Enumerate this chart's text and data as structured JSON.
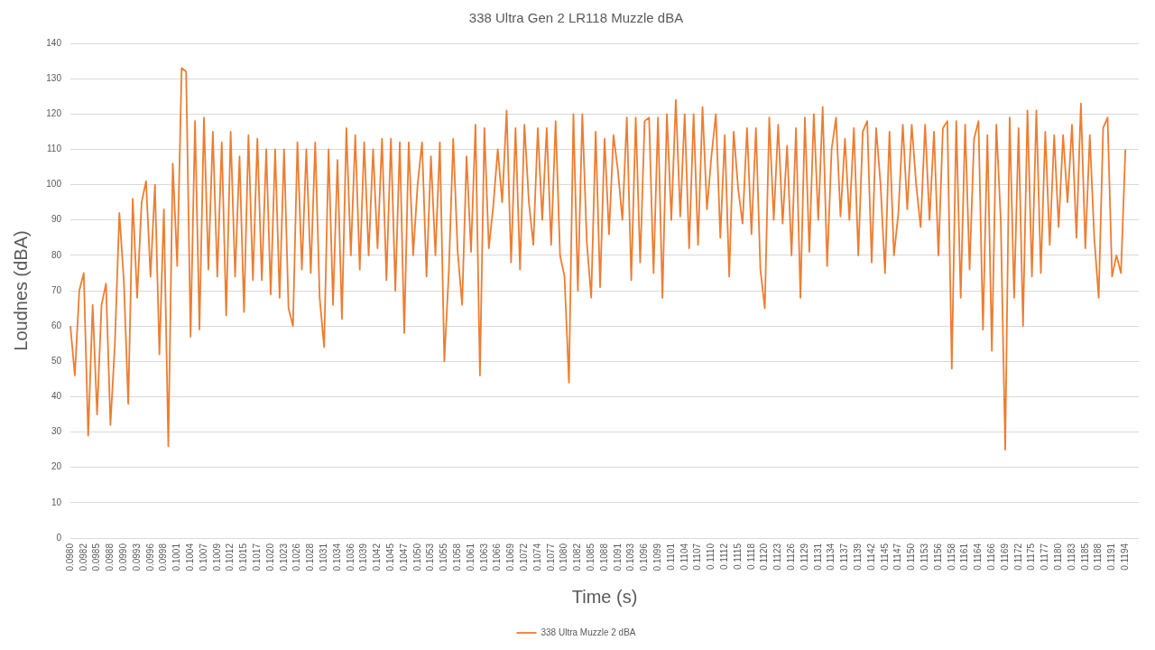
{
  "chart_data": {
    "type": "line",
    "title": "338 Ultra Gen 2 LR118 Muzzle dBA",
    "xlabel": "Time (s)",
    "ylabel": "Loudnes (dBA)",
    "categories": [
      "0.0980",
      null,
      null,
      "0.0982",
      null,
      null,
      "0.0985",
      null,
      null,
      "0.0988",
      null,
      null,
      "0.0990",
      null,
      null,
      "0.0993",
      null,
      null,
      "0.0996",
      null,
      null,
      "0.0998",
      null,
      null,
      "0.1001",
      null,
      null,
      "0.1004",
      null,
      null,
      "0.1007",
      null,
      null,
      "0.1009",
      null,
      null,
      "0.1012",
      null,
      null,
      "0.1015",
      null,
      null,
      "0.1017",
      null,
      null,
      "0.1020",
      null,
      null,
      "0.1023",
      null,
      null,
      "0.1026",
      null,
      null,
      "0.1028",
      null,
      null,
      "0.1031",
      null,
      null,
      "0.1034",
      null,
      null,
      "0.1036",
      null,
      null,
      "0.1039",
      null,
      null,
      "0.1042",
      null,
      null,
      "0.1045",
      null,
      null,
      "0.1047",
      null,
      null,
      "0.1050",
      null,
      null,
      "0.1053",
      null,
      null,
      "0.1055",
      null,
      null,
      "0.1058",
      null,
      null,
      "0.1061",
      null,
      null,
      "0.1063",
      null,
      null,
      "0.1066",
      null,
      null,
      "0.1069",
      null,
      null,
      "0.1072",
      null,
      null,
      "0.1074",
      null,
      null,
      "0.1077",
      null,
      null,
      "0.1080",
      null,
      null,
      "0.1082",
      null,
      null,
      "0.1085",
      null,
      null,
      "0.1088",
      null,
      null,
      "0.1091",
      null,
      null,
      "0.1093",
      null,
      null,
      "0.1096",
      null,
      null,
      "0.1099",
      null,
      null,
      "0.1101",
      null,
      null,
      "0.1104",
      null,
      null,
      "0.1107",
      null,
      null,
      "0.1110",
      null,
      null,
      "0.1112",
      null,
      null,
      "0.1115",
      null,
      null,
      "0.1118",
      null,
      null,
      "0.1120",
      null,
      null,
      "0.1123",
      null,
      null,
      "0.1126",
      null,
      null,
      "0.1129",
      null,
      null,
      "0.1131",
      null,
      null,
      "0.1134",
      null,
      null,
      "0.1137",
      null,
      null,
      "0.1139",
      null,
      null,
      "0.1142",
      null,
      null,
      "0.1145",
      null,
      null,
      "0.1147",
      null,
      null,
      "0.1150",
      null,
      null,
      "0.1153",
      null,
      null,
      "0.1156",
      null,
      null,
      "0.1158",
      null,
      null,
      "0.1161",
      null,
      null,
      "0.1164",
      null,
      null,
      "0.1166",
      null,
      null,
      "0.1169",
      null,
      null,
      "0.1172",
      null,
      null,
      "0.1175",
      null,
      null,
      "0.1177",
      null,
      null,
      "0.1180",
      null,
      null,
      "0.1183",
      null,
      null,
      "0.1185",
      null,
      null,
      "0.1188",
      null,
      null,
      "0.1191",
      null,
      null,
      "0.1194",
      null,
      null,
      null
    ],
    "series": [
      {
        "name": "338 Ultra Muzzle 2 dBA",
        "color": "#ed7d31",
        "values": [
          60,
          46,
          70,
          75,
          29,
          66,
          35,
          66,
          72,
          32,
          55,
          92,
          73,
          38,
          96,
          68,
          95,
          101,
          74,
          100,
          52,
          93,
          26,
          106,
          77,
          133,
          132,
          57,
          118,
          59,
          119,
          76,
          115,
          74,
          112,
          63,
          115,
          74,
          108,
          64,
          114,
          73,
          113,
          73,
          110,
          69,
          110,
          68,
          110,
          65,
          60,
          112,
          76,
          110,
          75,
          112,
          68,
          54,
          110,
          66,
          107,
          62,
          116,
          80,
          114,
          76,
          112,
          80,
          110,
          82,
          113,
          73,
          113,
          70,
          112,
          58,
          112,
          80,
          100,
          112,
          74,
          108,
          80,
          112,
          50,
          75,
          113,
          81,
          66,
          108,
          81,
          117,
          46,
          116,
          82,
          94,
          110,
          95,
          121,
          78,
          116,
          76,
          117,
          95,
          83,
          116,
          90,
          116,
          83,
          118,
          80,
          74,
          44,
          120,
          70,
          120,
          84,
          68,
          115,
          71,
          113,
          86,
          114,
          104,
          90,
          119,
          73,
          119,
          78,
          118,
          119,
          75,
          119,
          68,
          120,
          90,
          124,
          91,
          120,
          82,
          120,
          83,
          122,
          93,
          108,
          120,
          85,
          114,
          74,
          115,
          99,
          89,
          116,
          86,
          116,
          76,
          65,
          119,
          90,
          117,
          89,
          111,
          80,
          116,
          68,
          119,
          81,
          120,
          90,
          122,
          77,
          110,
          119,
          91,
          113,
          90,
          116,
          80,
          115,
          118,
          78,
          116,
          100,
          75,
          115,
          80,
          92,
          117,
          93,
          117,
          100,
          88,
          117,
          90,
          115,
          80,
          116,
          118,
          48,
          118,
          68,
          117,
          76,
          113,
          118,
          59,
          114,
          53,
          117,
          90,
          25,
          119,
          68,
          116,
          60,
          121,
          74,
          121,
          75,
          115,
          83,
          114,
          88,
          114,
          95,
          117,
          85,
          123,
          82,
          114,
          85,
          68,
          116,
          119,
          74,
          80,
          75,
          110,
          null,
          null,
          null
        ]
      }
    ],
    "ylim": [
      0,
      140
    ],
    "yticks": [
      0,
      10,
      20,
      30,
      40,
      50,
      60,
      70,
      80,
      90,
      100,
      110,
      120,
      130,
      140
    ],
    "grid": "y",
    "legend": "bottom"
  }
}
